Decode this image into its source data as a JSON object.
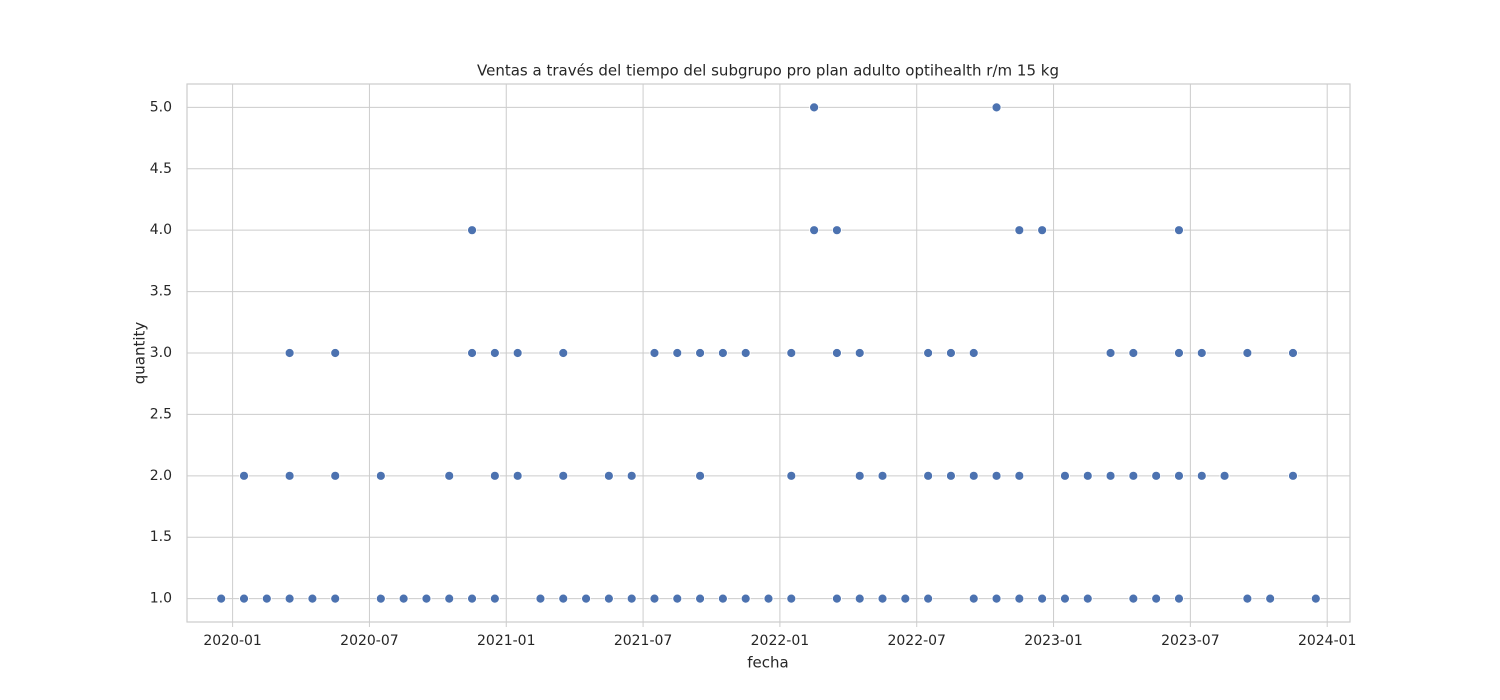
{
  "chart_data": {
    "type": "scatter",
    "title": "Ventas a través del tiempo del subgrupo pro plan adulto optihealth r/m 15 kg",
    "xlabel": "fecha",
    "ylabel": "quantity",
    "color": "#4c72b0",
    "grid": true,
    "xlim": [
      "2019-11",
      "2024-02"
    ],
    "xticks": [
      "2020-01",
      "2020-07",
      "2021-01",
      "2021-07",
      "2022-01",
      "2022-07",
      "2023-01",
      "2023-07",
      "2024-01"
    ],
    "ylim": [
      0.81,
      5.19
    ],
    "yticks": [
      {
        "value": 1,
        "label": "1.0"
      },
      1.5,
      {
        "value": 2,
        "label": "2.0"
      },
      2.5,
      {
        "value": 3,
        "label": "3.0"
      },
      3.5,
      {
        "value": 4,
        "label": "4.0"
      },
      4.5,
      {
        "value": 5,
        "label": "5.0"
      }
    ],
    "x": [
      "2019-12",
      "2020-01",
      "2020-01",
      "2020-02",
      "2020-03",
      "2020-04",
      "2020-05",
      "2020-07",
      "2020-07",
      "2020-08",
      "2020-09",
      "2020-09",
      "2020-09",
      "2020-10",
      "2020-11",
      "2020-12",
      "2021-02",
      "2021-02",
      "2021-02",
      "2021-02",
      "2021-03",
      "2021-04",
      "2021-05",
      "2021-05",
      "2021-06",
      "2021-07",
      "2021-08",
      "2021-08",
      "2021-08",
      "2021-09",
      "2021-09",
      "2021-10",
      "2021-10",
      "2021-11",
      "2021-11",
      "2021-12",
      "2021-12",
      "2022-01",
      "2022-03",
      "2022-03",
      "2022-04",
      "2022-05",
      "2022-05",
      "2022-05",
      "2022-06",
      "2022-06",
      "2022-07",
      "2022-09",
      "2022-10",
      "2022-11",
      "2022-12",
      "2022-12",
      "2022-12",
      "2023-01",
      "2023-02",
      "2023-02",
      "2023-04",
      "2023-04",
      "2023-05",
      "2023-06",
      "2023-09",
      "2023-09",
      "2023-10",
      "2023-10",
      "2023-10",
      "2023-12",
      "2020-01",
      "2020-03",
      "2020-05",
      "2020-05",
      "2020-07",
      "2020-10",
      "2020-10",
      "2020-10",
      "2020-12",
      "2020-12",
      "2021-01",
      "2021-01",
      "2021-01",
      "2021-03",
      "2021-03",
      "2021-05",
      "2021-05",
      "2021-06",
      "2021-06",
      "2021-09",
      "2022-01",
      "2022-04",
      "2022-05",
      "2022-07",
      "2022-08",
      "2022-08",
      "2022-08",
      "2022-09",
      "2022-10",
      "2022-10",
      "2022-11",
      "2023-01",
      "2023-01",
      "2023-02",
      "2023-02",
      "2023-03",
      "2023-03",
      "2023-03",
      "2023-04",
      "2023-04",
      "2023-05",
      "2023-06",
      "2023-07",
      "2023-08",
      "2023-08",
      "2023-08",
      "2023-08",
      "2023-11",
      "2023-11",
      "2020-03",
      "2020-03",
      "2020-05",
      "2020-11",
      "2020-12",
      "2020-12",
      "2021-01",
      "2021-03",
      "2021-07",
      "2021-07",
      "2021-08",
      "2021-09",
      "2021-09",
      "2021-10",
      "2021-11",
      "2022-01",
      "2022-03",
      "2022-04",
      "2022-04",
      "2022-07",
      "2022-08",
      "2022-08",
      "2022-09",
      "2023-03",
      "2023-04",
      "2023-06",
      "2023-07",
      "2023-09",
      "2023-11",
      "2023-11",
      "2020-11",
      "2022-02",
      "2022-03",
      "2022-11",
      "2022-12",
      "2023-06",
      "2022-02",
      "2022-10"
    ],
    "values": [
      1,
      1,
      1,
      1,
      1,
      1,
      1,
      1,
      1,
      1,
      1,
      1,
      1,
      1,
      1,
      1,
      1,
      1,
      1,
      1,
      1,
      1,
      1,
      1,
      1,
      1,
      1,
      1,
      1,
      1,
      1,
      1,
      1,
      1,
      1,
      1,
      1,
      1,
      1,
      1,
      1,
      1,
      1,
      1,
      1,
      1,
      1,
      1,
      1,
      1,
      1,
      1,
      1,
      1,
      1,
      1,
      1,
      1,
      1,
      1,
      1,
      1,
      1,
      1,
      1,
      1,
      2,
      2,
      2,
      2,
      2,
      2,
      2,
      2,
      2,
      2,
      2,
      2,
      2,
      2,
      2,
      2,
      2,
      2,
      2,
      2,
      2,
      2,
      2,
      2,
      2,
      2,
      2,
      2,
      2,
      2,
      2,
      2,
      2,
      2,
      2,
      2,
      2,
      2,
      2,
      2,
      2,
      2,
      2,
      2,
      2,
      2,
      2,
      2,
      2,
      3,
      3,
      3,
      3,
      3,
      3,
      3,
      3,
      3,
      3,
      3,
      3,
      3,
      3,
      3,
      3,
      3,
      3,
      3,
      3,
      3,
      3,
      3,
      3,
      3,
      3,
      3,
      3,
      3,
      3,
      4,
      4,
      4,
      4,
      4,
      4,
      5,
      5
    ]
  }
}
